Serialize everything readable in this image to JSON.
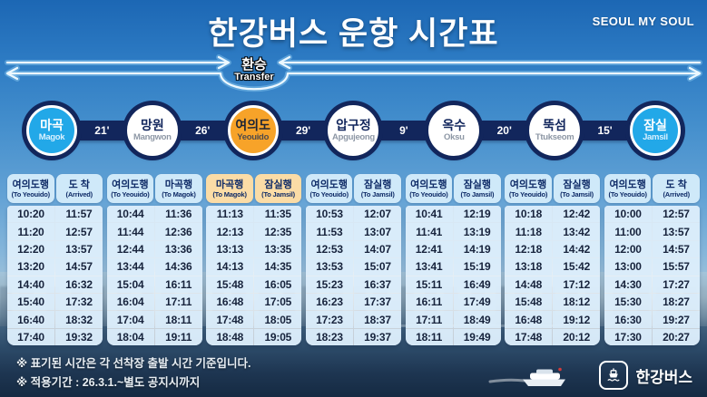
{
  "title": "한강버스 운항 시간표",
  "brand": "SEOUL MY SOUL",
  "transfer": {
    "ko": "환승",
    "en": "Transfer"
  },
  "route": {
    "stations": [
      {
        "ko": "마곡",
        "en": "Magok",
        "style": "cyan"
      },
      {
        "ko": "망원",
        "en": "Mangwon",
        "style": "white"
      },
      {
        "ko": "여의도",
        "en": "Yeouido",
        "style": "orange"
      },
      {
        "ko": "압구정",
        "en": "Apgujeong",
        "style": "white"
      },
      {
        "ko": "옥수",
        "en": "Oksu",
        "style": "white"
      },
      {
        "ko": "뚝섬",
        "en": "Ttukseom",
        "style": "white"
      },
      {
        "ko": "잠실",
        "en": "Jamsil",
        "style": "cyan"
      }
    ],
    "travel_times": [
      "21'",
      "26'",
      "29'",
      "9'",
      "20'",
      "15'"
    ]
  },
  "timetables": [
    {
      "station": "Magok",
      "accent": "blue",
      "headers": [
        {
          "ko": "여의도행",
          "sub": "(To Yeouido)"
        },
        {
          "ko": "도 착",
          "sub": "(Arrived)"
        }
      ],
      "rows": [
        [
          "10:20",
          "11:57"
        ],
        [
          "11:20",
          "12:57"
        ],
        [
          "12:20",
          "13:57"
        ],
        [
          "13:20",
          "14:57"
        ],
        [
          "14:40",
          "16:32"
        ],
        [
          "15:40",
          "17:32"
        ],
        [
          "16:40",
          "18:32"
        ],
        [
          "17:40",
          "19:32"
        ]
      ]
    },
    {
      "station": "Mangwon",
      "accent": "blue",
      "headers": [
        {
          "ko": "여의도행",
          "sub": "(To Yeouido)"
        },
        {
          "ko": "마곡행",
          "sub": "(To Magok)"
        }
      ],
      "rows": [
        [
          "10:44",
          "11:36"
        ],
        [
          "11:44",
          "12:36"
        ],
        [
          "12:44",
          "13:36"
        ],
        [
          "13:44",
          "14:36"
        ],
        [
          "15:04",
          "16:11"
        ],
        [
          "16:04",
          "17:11"
        ],
        [
          "17:04",
          "18:11"
        ],
        [
          "18:04",
          "19:11"
        ]
      ]
    },
    {
      "station": "Yeouido",
      "accent": "orange",
      "headers": [
        {
          "ko": "마곡행",
          "sub": "(To Magok)"
        },
        {
          "ko": "잠실행",
          "sub": "(To Jamsil)"
        }
      ],
      "rows": [
        [
          "11:13",
          "11:35"
        ],
        [
          "12:13",
          "12:35"
        ],
        [
          "13:13",
          "13:35"
        ],
        [
          "14:13",
          "14:35"
        ],
        [
          "15:48",
          "16:05"
        ],
        [
          "16:48",
          "17:05"
        ],
        [
          "17:48",
          "18:05"
        ],
        [
          "18:48",
          "19:05"
        ]
      ]
    },
    {
      "station": "Apgujeong",
      "accent": "blue",
      "headers": [
        {
          "ko": "여의도행",
          "sub": "(To Yeouido)"
        },
        {
          "ko": "잠실행",
          "sub": "(To Jamsil)"
        }
      ],
      "rows": [
        [
          "10:53",
          "12:07"
        ],
        [
          "11:53",
          "13:07"
        ],
        [
          "12:53",
          "14:07"
        ],
        [
          "13:53",
          "15:07"
        ],
        [
          "15:23",
          "16:37"
        ],
        [
          "16:23",
          "17:37"
        ],
        [
          "17:23",
          "18:37"
        ],
        [
          "18:23",
          "19:37"
        ]
      ]
    },
    {
      "station": "Oksu",
      "accent": "blue",
      "headers": [
        {
          "ko": "여의도행",
          "sub": "(To Yeouido)"
        },
        {
          "ko": "잠실행",
          "sub": "(To Jamsil)"
        }
      ],
      "rows": [
        [
          "10:41",
          "12:19"
        ],
        [
          "11:41",
          "13:19"
        ],
        [
          "12:41",
          "14:19"
        ],
        [
          "13:41",
          "15:19"
        ],
        [
          "15:11",
          "16:49"
        ],
        [
          "16:11",
          "17:49"
        ],
        [
          "17:11",
          "18:49"
        ],
        [
          "18:11",
          "19:49"
        ]
      ]
    },
    {
      "station": "Ttukseom",
      "accent": "blue",
      "headers": [
        {
          "ko": "여의도행",
          "sub": "(To Yeouido)"
        },
        {
          "ko": "잠실행",
          "sub": "(To Jamsil)"
        }
      ],
      "rows": [
        [
          "10:18",
          "12:42"
        ],
        [
          "11:18",
          "13:42"
        ],
        [
          "12:18",
          "14:42"
        ],
        [
          "13:18",
          "15:42"
        ],
        [
          "14:48",
          "17:12"
        ],
        [
          "15:48",
          "18:12"
        ],
        [
          "16:48",
          "19:12"
        ],
        [
          "17:48",
          "20:12"
        ]
      ]
    },
    {
      "station": "Jamsil",
      "accent": "blue",
      "headers": [
        {
          "ko": "여의도행",
          "sub": "(To Yeouido)"
        },
        {
          "ko": "도 착",
          "sub": "(Arrived)"
        }
      ],
      "rows": [
        [
          "10:00",
          "12:57"
        ],
        [
          "11:00",
          "13:57"
        ],
        [
          "12:00",
          "14:57"
        ],
        [
          "13:00",
          "15:57"
        ],
        [
          "14:30",
          "17:27"
        ],
        [
          "15:30",
          "18:27"
        ],
        [
          "16:30",
          "19:27"
        ],
        [
          "17:30",
          "20:27"
        ]
      ]
    }
  ],
  "notes": [
    "※ 표기된 시간은 각 선착장 출발 시간 기준입니다.",
    "※ 적용기간 : 26.3.1.~별도 공지시까지"
  ],
  "footer_logo": "한강버스",
  "colors": {
    "navy": "#12265c",
    "cyan": "#22a8e8",
    "orange": "#f7a329",
    "header_blue": "#cfe9f9",
    "header_orange": "#fbdca6",
    "line_white": "#ecf8ff"
  }
}
